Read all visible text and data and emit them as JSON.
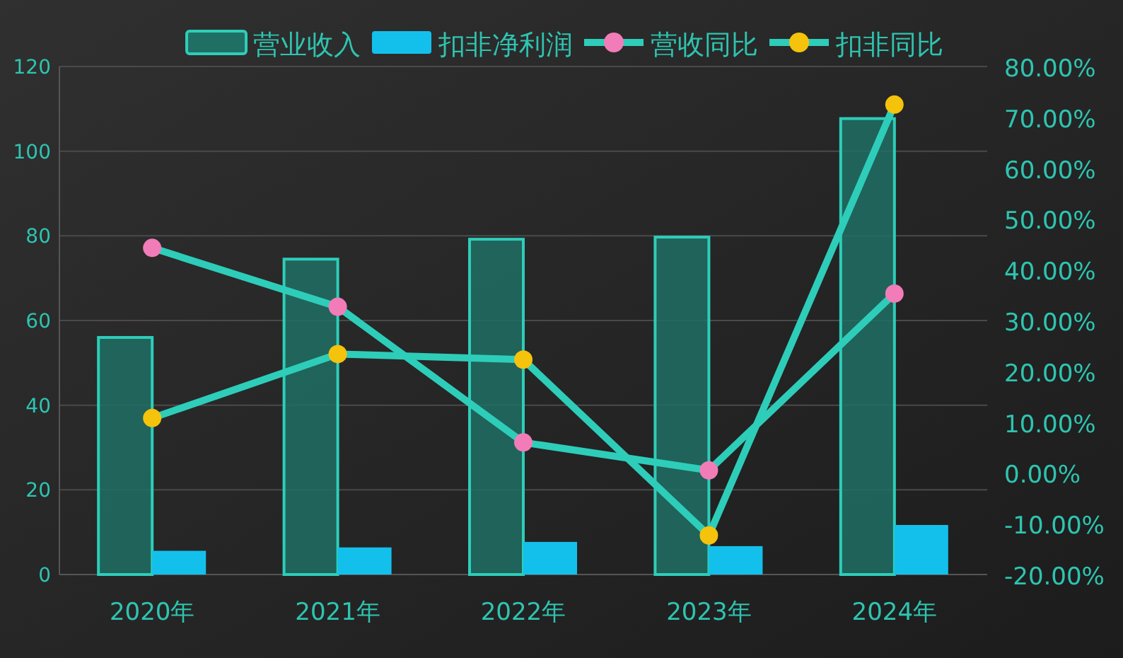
{
  "chart_data": {
    "type": "bar",
    "categories": [
      "2020年",
      "2021年",
      "2022年",
      "2023年",
      "2024年"
    ],
    "series": [
      {
        "name": "营业收入",
        "color": "#1f6f64",
        "values": [
          56,
          74.5,
          79.2,
          79.7,
          107.7
        ]
      },
      {
        "name": "扣非净利润",
        "color": "#13c0ec",
        "values": [
          5.6,
          6.4,
          7.7,
          6.7,
          11.7
        ]
      },
      {
        "name": "营收同比",
        "type": "line",
        "axis": "y2",
        "color": "#2ecdb9",
        "colors": [
          "#f27cb8",
          "#f27cb8",
          "#f27cb8",
          "#f27cb8",
          "#f27cb8"
        ],
        "values": [
          44.3,
          32.7,
          6.0,
          0.5,
          35.3
        ]
      },
      {
        "name": "扣非同比",
        "type": "line",
        "axis": "y2",
        "color": "#2ecdb9",
        "colors": [
          "#f5c20c",
          "#f5c20c",
          "#f5c20c",
          "#f5c20c",
          "#f5c20c"
        ],
        "values": [
          10.8,
          23.4,
          22.3,
          -12.3,
          72.5
        ]
      }
    ],
    "ylim": [
      0,
      120
    ],
    "yticks": [
      0,
      20,
      40,
      60,
      80,
      100,
      120
    ],
    "y2lim": [
      -20,
      80
    ],
    "y2ticks": [
      {
        "value": -20,
        "label": "-20.00%"
      },
      {
        "value": -10,
        "label": "-10.00%"
      },
      {
        "value": 0,
        "label": "0.00%"
      },
      {
        "value": 10,
        "label": "10.00%"
      },
      {
        "value": 20,
        "label": "20.00%"
      },
      {
        "value": 30,
        "label": "30.00%"
      },
      {
        "value": 40,
        "label": "40.00%"
      },
      {
        "value": 50,
        "label": "50.00%"
      },
      {
        "value": 60,
        "label": "60.00%"
      },
      {
        "value": 70,
        "label": "70.00%"
      },
      {
        "value": 80,
        "label": "80.00%"
      }
    ],
    "grid": "y",
    "legend": "top",
    "marker": "circle",
    "line_style": "solid"
  }
}
